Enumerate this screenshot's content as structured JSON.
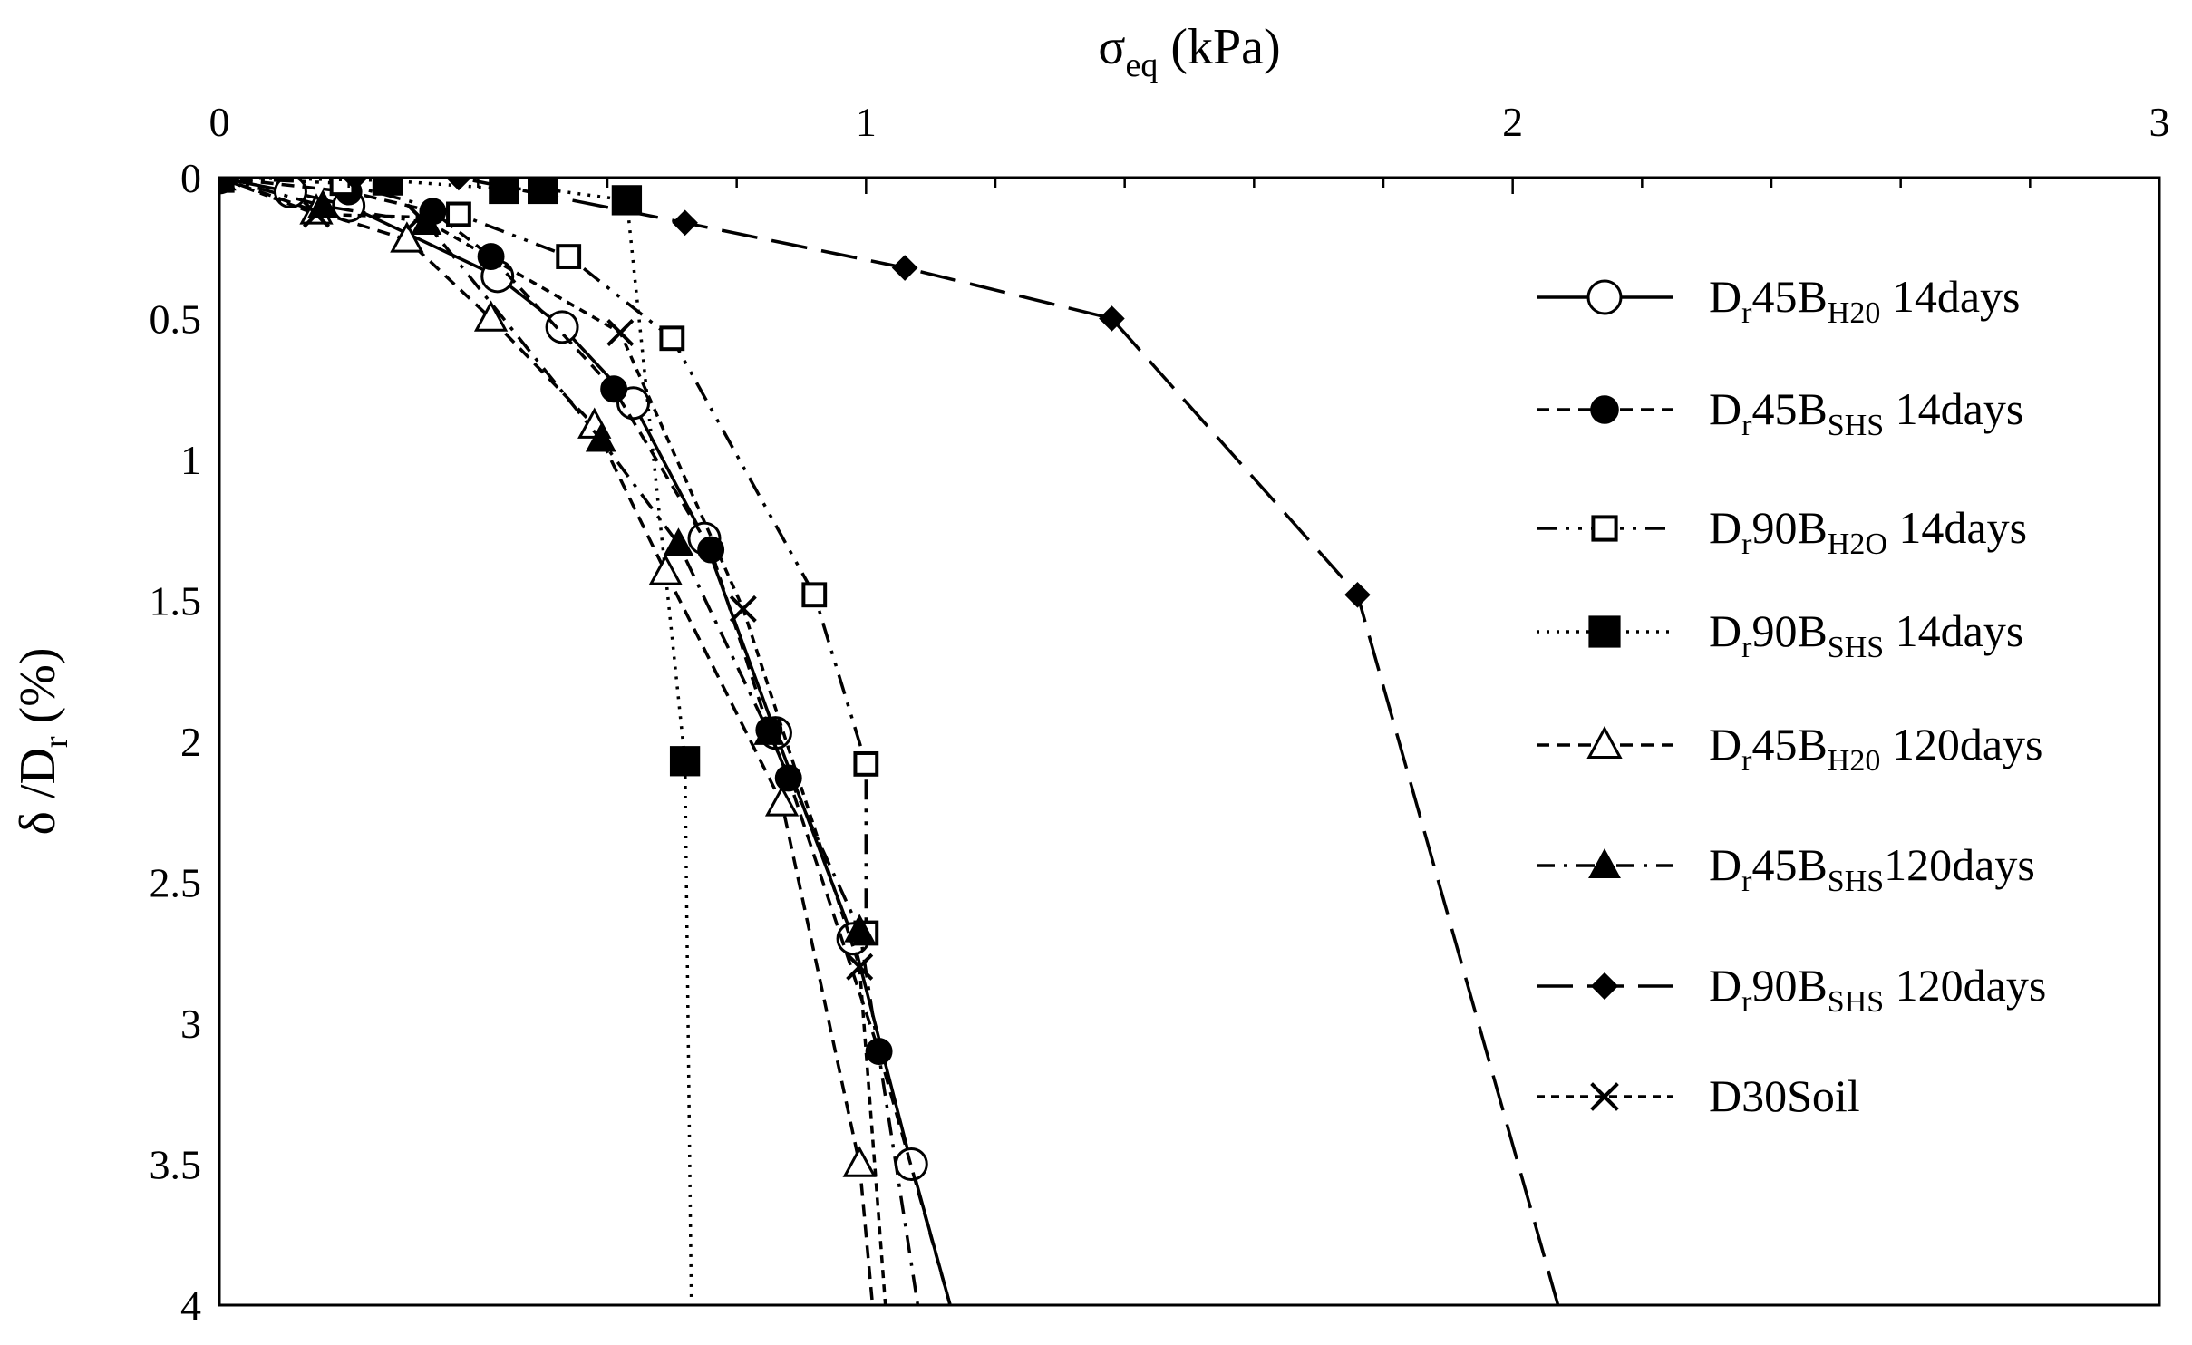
{
  "chart_data": {
    "type": "line",
    "xlabel": {
      "main": "σ",
      "sub": "eq",
      "rest": " (kPa)"
    },
    "ylabel": {
      "main": "δ /D",
      "sub": "r",
      "rest": " (%)"
    },
    "xlim": [
      0,
      3
    ],
    "ylim": [
      0,
      4
    ],
    "x_axis_position": "top",
    "y_axis_inverted": true,
    "x_ticks": [
      0,
      1,
      2,
      3
    ],
    "y_ticks": [
      0,
      0.5,
      1,
      1.5,
      2,
      2.5,
      3,
      3.5,
      4
    ],
    "x_tick_labels": [
      "0",
      "1",
      "2",
      "3"
    ],
    "y_tick_labels": [
      "0",
      "0.5",
      "1",
      "1.5",
      "2",
      "2.5",
      "3",
      "3.5",
      "4"
    ],
    "grid": false,
    "legend_position": "right",
    "series": [
      {
        "label": {
          "pre": "D",
          "sub1": "r",
          "mid": "45B",
          "sub2": "H20",
          "post": " 14days"
        },
        "marker": "circle-open",
        "line": "solid",
        "x": [
          0,
          0.11,
          0.2,
          0.43,
          0.53,
          0.64,
          0.75,
          0.86,
          0.98,
          1.07,
          1.13
        ],
        "y": [
          0,
          0.05,
          0.1,
          0.35,
          0.53,
          0.8,
          1.28,
          1.97,
          2.7,
          3.5,
          4.0
        ]
      },
      {
        "label": {
          "pre": "D",
          "sub1": "r",
          "mid": "45B",
          "sub2": "SHS",
          "post": " 14days"
        },
        "marker": "circle-filled",
        "line": "dashed",
        "x": [
          0,
          0.2,
          0.33,
          0.42,
          0.61,
          0.76,
          0.85,
          0.88,
          1.02,
          1.13
        ],
        "y": [
          0,
          0.05,
          0.12,
          0.28,
          0.75,
          1.32,
          1.96,
          2.13,
          3.1,
          4.0
        ]
      },
      {
        "label": {
          "pre": "D",
          "sub1": "r",
          "mid": "90B",
          "sub2": "H2O",
          "post": " 14days"
        },
        "marker": "square-open",
        "line": "dashdotdot",
        "x": [
          0,
          0.19,
          0.37,
          0.54,
          0.7,
          0.92,
          1.0,
          1.0
        ],
        "y": [
          0,
          0.02,
          0.13,
          0.28,
          0.57,
          1.48,
          2.08,
          2.68
        ]
      },
      {
        "label": {
          "pre": "D",
          "sub1": "r",
          "mid": "90B",
          "sub2": "SHS",
          "post": "  14days"
        },
        "marker": "square-filled",
        "line": "dotted",
        "x": [
          0,
          0.26,
          0.44,
          0.5,
          0.63,
          0.72,
          0.73
        ],
        "y": [
          0,
          0.01,
          0.04,
          0.04,
          0.08,
          2.07,
          4.0
        ]
      },
      {
        "label": {
          "pre": "D",
          "sub1": "r",
          "mid": "45B",
          "sub2": "H20",
          "post": " 120days"
        },
        "marker": "triangle-open",
        "line": "dashed",
        "x": [
          0,
          0.15,
          0.29,
          0.42,
          0.58,
          0.69,
          0.87,
          0.99,
          1.01
        ],
        "y": [
          0,
          0.12,
          0.22,
          0.5,
          0.88,
          1.4,
          2.22,
          3.5,
          4.0
        ]
      },
      {
        "label": {
          "pre": "D",
          "sub1": "r",
          "mid": "45B",
          "sub2": "SHS",
          "post": "120days"
        },
        "marker": "triangle-filled",
        "line": "dashdot",
        "x": [
          0,
          0.16,
          0.32,
          0.59,
          0.71,
          0.85,
          0.99,
          1.08
        ],
        "y": [
          0,
          0.1,
          0.16,
          0.93,
          1.3,
          1.97,
          2.67,
          4.0
        ]
      },
      {
        "label": {
          "pre": "D",
          "sub1": "r",
          "mid": "90B",
          "sub2": "SHS",
          "post": " 120days"
        },
        "marker": "diamond-filled",
        "line": "longdash",
        "x": [
          0,
          0.21,
          0.37,
          0.72,
          1.06,
          1.38,
          1.76,
          2.07
        ],
        "y": [
          0,
          0.0,
          0.0,
          0.16,
          0.32,
          0.5,
          1.48,
          4.0
        ]
      },
      {
        "label": {
          "pre": "D30Soil",
          "sub1": "",
          "mid": "",
          "sub2": "",
          "post": ""
        },
        "marker": "x",
        "line": "shortdash",
        "x": [
          0,
          0.15,
          0.31,
          0.62,
          0.81,
          0.99,
          1.03
        ],
        "y": [
          0,
          0.13,
          0.14,
          0.55,
          1.53,
          2.8,
          4.0
        ]
      }
    ]
  }
}
